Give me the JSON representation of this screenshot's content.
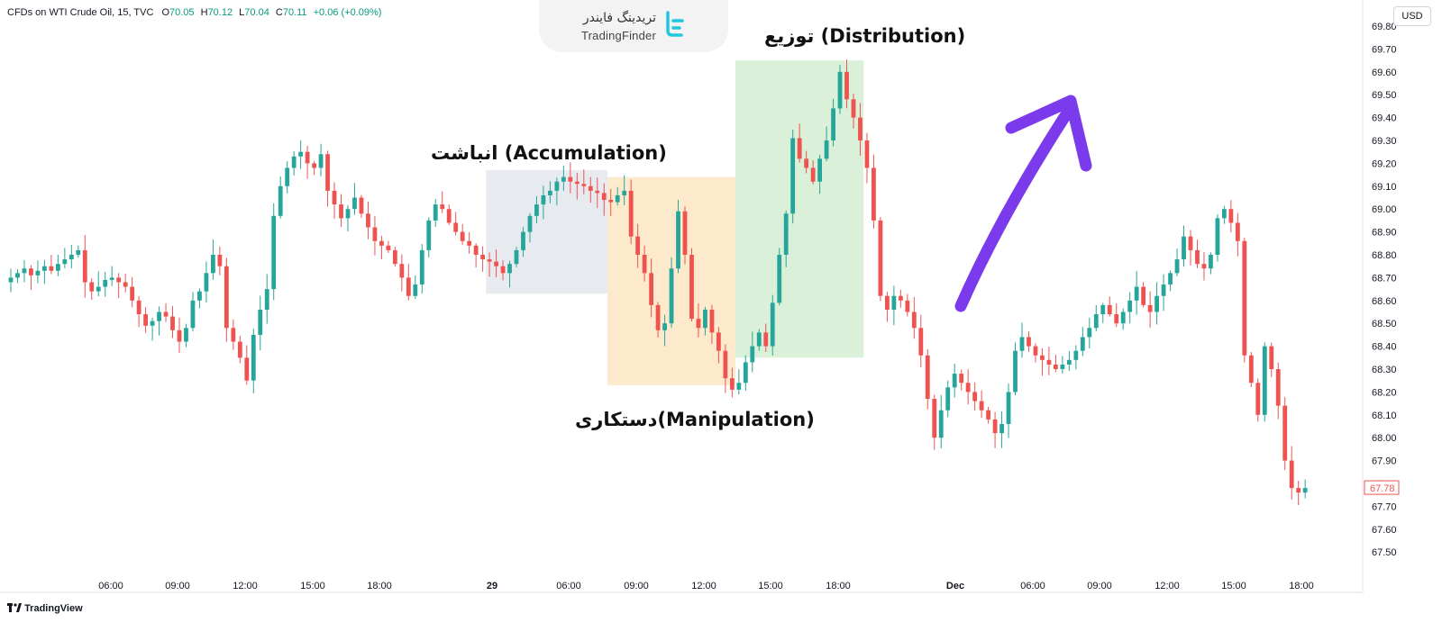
{
  "header": {
    "symbol": "CFDs on WTI Crude Oil, 15, TVC",
    "o_label": "O",
    "o_value": "70.05",
    "h_label": "H",
    "h_value": "70.12",
    "l_label": "L",
    "l_value": "70.04",
    "c_label": "C",
    "c_value": "70.11",
    "change": "+0.06 (+0.09%)"
  },
  "currency": "USD",
  "logo": {
    "fa_text": "تریدینگ فایندر",
    "en_text": "TradingFinder"
  },
  "annotations": {
    "accumulation": "انباشت (Accumulation)",
    "manipulation": "دستکاری(Manipulation)",
    "distribution": "توزیع (Distribution)"
  },
  "footer": {
    "brand": "TradingView"
  },
  "colors": {
    "up": "#26a69a",
    "down": "#ef5350",
    "arrow": "#7c3aed",
    "accumulation_zone": "#e3e8ec",
    "manipulation_zone": "#fde6c4",
    "distribution_zone": "#d4edd2"
  },
  "icons": {
    "logo": "tradingfinder-logo-icon",
    "footer": "tradingview-logo-icon"
  },
  "chart_data": {
    "type": "candlestick",
    "ylim": [
      67.42,
      69.82
    ],
    "y_ticks": [
      "69.80",
      "69.70",
      "69.60",
      "69.50",
      "69.40",
      "69.30",
      "69.20",
      "69.10",
      "69.00",
      "68.90",
      "68.80",
      "68.70",
      "68.60",
      "68.50",
      "68.40",
      "68.30",
      "68.20",
      "68.10",
      "68.00",
      "67.90",
      "67.80",
      "67.70",
      "67.60",
      "67.50"
    ],
    "x_ticks": [
      "06:00",
      "09:00",
      "12:00",
      "15:00",
      "18:00",
      "29",
      "06:00",
      "09:00",
      "12:00",
      "15:00",
      "18:00",
      "Dec",
      "06:00",
      "09:00",
      "12:00",
      "15:00",
      "18:00"
    ],
    "last_price": "67.78",
    "zones": [
      {
        "name": "accumulation",
        "bar_start": 71,
        "bar_end": 89,
        "y_top": 69.17,
        "y_bottom": 68.63
      },
      {
        "name": "manipulation",
        "bar_start": 89,
        "bar_end": 108,
        "y_top": 69.14,
        "y_bottom": 68.23
      },
      {
        "name": "distribution",
        "bar_start": 108,
        "bar_end": 127,
        "y_top": 69.65,
        "y_bottom": 68.35
      }
    ],
    "close": [
      68.7,
      68.72,
      68.74,
      68.71,
      68.73,
      68.75,
      68.73,
      68.76,
      68.78,
      68.8,
      68.82,
      68.68,
      68.64,
      68.66,
      68.69,
      68.7,
      68.68,
      68.66,
      68.6,
      68.54,
      68.49,
      68.51,
      68.55,
      68.53,
      68.47,
      68.42,
      68.48,
      68.6,
      68.64,
      68.72,
      68.8,
      68.75,
      68.48,
      68.42,
      68.35,
      68.25,
      68.45,
      68.56,
      68.65,
      68.97,
      69.1,
      69.18,
      69.23,
      69.25,
      69.2,
      69.18,
      69.24,
      69.08,
      69.02,
      68.96,
      69.0,
      69.05,
      68.98,
      68.92,
      68.86,
      68.84,
      68.82,
      68.76,
      68.7,
      68.62,
      68.67,
      68.82,
      68.95,
      69.02,
      69.0,
      68.94,
      68.9,
      68.86,
      68.84,
      68.8,
      68.78,
      68.77,
      68.75,
      68.72,
      68.76,
      68.82,
      68.9,
      68.97,
      69.02,
      69.06,
      69.08,
      69.12,
      69.14,
      69.12,
      69.11,
      69.1,
      69.08,
      69.07,
      69.04,
      69.03,
      69.06,
      69.08,
      68.88,
      68.8,
      68.72,
      68.58,
      68.47,
      68.5,
      68.74,
      68.99,
      68.8,
      68.52,
      68.48,
      68.56,
      68.46,
      68.38,
      68.26,
      68.21,
      68.24,
      68.33,
      68.4,
      68.46,
      68.4,
      68.59,
      68.8,
      68.98,
      69.31,
      69.22,
      69.18,
      69.12,
      69.22,
      69.3,
      69.44,
      69.6,
      69.48,
      69.4,
      69.3,
      69.18,
      68.95,
      68.62,
      68.56,
      68.62,
      68.6,
      68.55,
      68.48,
      68.36,
      68.17,
      68.0,
      68.12,
      68.22,
      68.28,
      68.24,
      68.2,
      68.16,
      68.12,
      68.08,
      68.02,
      68.06,
      68.2,
      68.38,
      68.44,
      68.4,
      68.36,
      68.34,
      68.32,
      68.3,
      68.32,
      68.34,
      68.38,
      68.44,
      68.48,
      68.54,
      68.58,
      68.54,
      68.5,
      68.55,
      68.6,
      68.66,
      68.58,
      68.55,
      68.62,
      68.67,
      68.72,
      68.78,
      68.88,
      68.82,
      68.76,
      68.74,
      68.8,
      68.96,
      69.0,
      68.94,
      68.86,
      68.36,
      68.24,
      68.1,
      68.4,
      68.3,
      68.14,
      67.9,
      67.78,
      67.76,
      67.78
    ]
  }
}
